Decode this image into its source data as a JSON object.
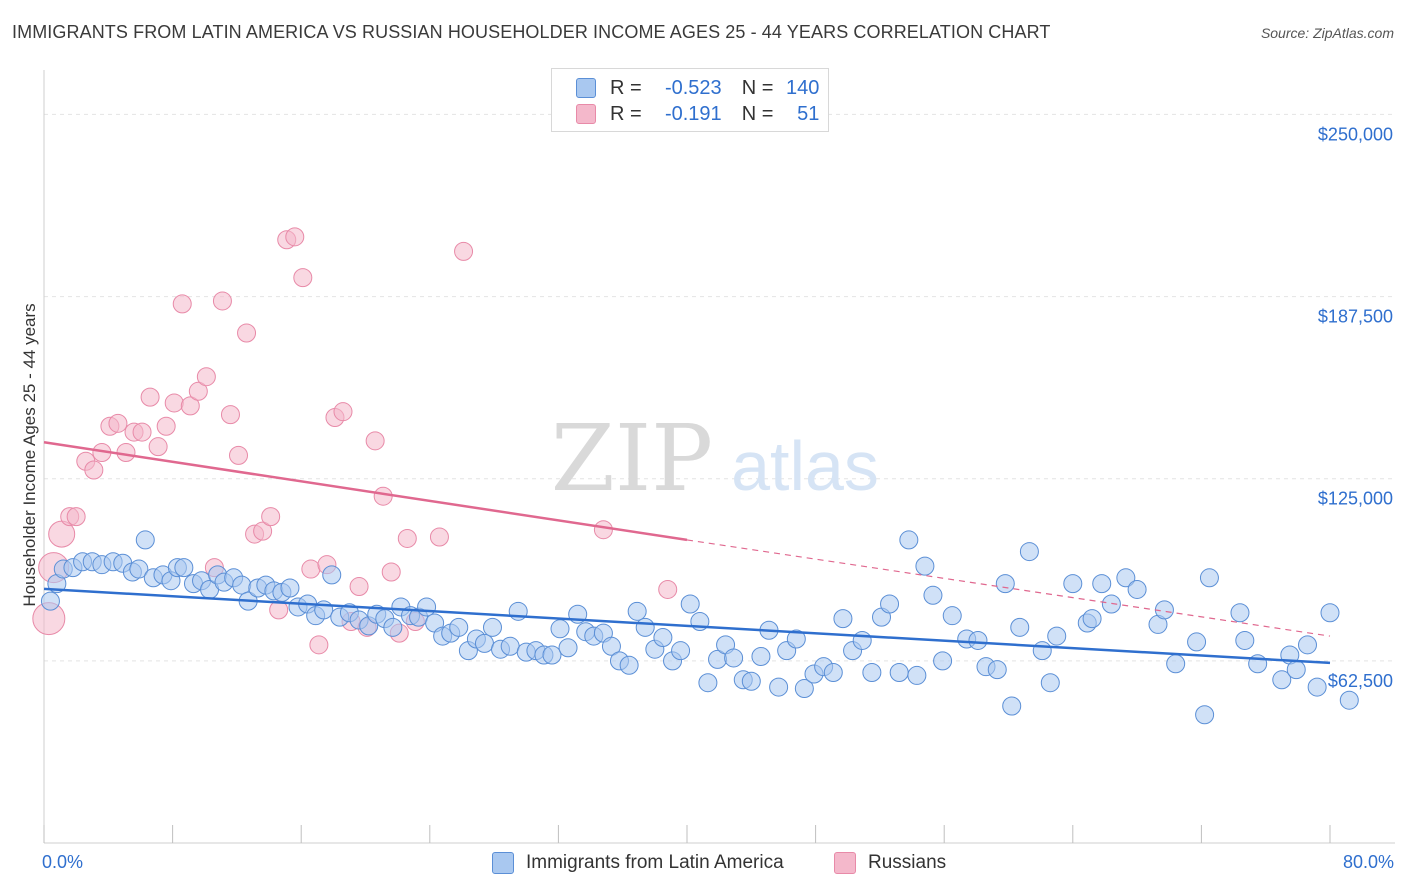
{
  "title": "IMMIGRANTS FROM LATIN AMERICA VS RUSSIAN HOUSEHOLDER INCOME AGES 25 - 44 YEARS CORRELATION CHART",
  "source": "Source: ZipAtlas.com",
  "watermark": {
    "zip": "ZIP",
    "atlas": "atlas"
  },
  "legend": {
    "r_label": "R =",
    "n_label": "N =",
    "rows": [
      {
        "r": "-0.523",
        "n": "140",
        "color": "#a9c8f0"
      },
      {
        "r": "-0.191",
        "n": "51",
        "color": "#f4b8cb"
      }
    ]
  },
  "bottom_legend": [
    "Immigrants from Latin America",
    "Russians"
  ],
  "colors": {
    "blue_fill": "#a9c8f0",
    "blue_stroke": "#5b8fd6",
    "blue_line": "#2f6fce",
    "pink_fill": "#f4b8cb",
    "pink_stroke": "#e88aa8",
    "pink_line": "#e0688f",
    "axis_text": "#2f6fce",
    "grid": "#e4e4e4"
  },
  "chart_data": {
    "type": "scatter",
    "title": "IMMIGRANTS FROM LATIN AMERICA VS RUSSIAN HOUSEHOLDER INCOME AGES 25 - 44 YEARS CORRELATION CHART",
    "xlabel": "",
    "ylabel": "Householder Income Ages 25 - 44 years",
    "xlim": [
      0,
      80
    ],
    "ylim": [
      0,
      262500
    ],
    "x_tick_labels": [
      "0.0%",
      "80.0%"
    ],
    "y_ticks": [
      62500,
      125000,
      187500,
      250000
    ],
    "y_tick_labels": [
      "$62,500",
      "$125,000",
      "$187,500",
      "$250,000"
    ],
    "grid": true,
    "legend_position": "top-center",
    "series": [
      {
        "name": "Immigrants from Latin America",
        "r": -0.523,
        "n": 140,
        "trend": {
          "x": [
            0,
            80
          ],
          "y": [
            87200,
            61800
          ],
          "dashed_from_x": null
        },
        "points": [
          [
            0.4,
            83000
          ],
          [
            0.8,
            89000
          ],
          [
            1.2,
            94000
          ],
          [
            1.8,
            94500
          ],
          [
            2.4,
            96500
          ],
          [
            3.0,
            96500
          ],
          [
            3.6,
            95500
          ],
          [
            4.3,
            96500
          ],
          [
            4.9,
            96000
          ],
          [
            5.5,
            93000
          ],
          [
            5.9,
            94000
          ],
          [
            6.3,
            104000
          ],
          [
            6.8,
            91000
          ],
          [
            7.4,
            92000
          ],
          [
            7.9,
            90000
          ],
          [
            8.3,
            94500
          ],
          [
            8.7,
            94500
          ],
          [
            9.3,
            89000
          ],
          [
            9.8,
            90000
          ],
          [
            10.3,
            87000
          ],
          [
            10.8,
            92000
          ],
          [
            11.2,
            89500
          ],
          [
            11.8,
            91000
          ],
          [
            12.3,
            88500
          ],
          [
            12.7,
            83000
          ],
          [
            13.3,
            87500
          ],
          [
            13.8,
            88500
          ],
          [
            14.3,
            86500
          ],
          [
            14.8,
            86000
          ],
          [
            15.3,
            87500
          ],
          [
            15.8,
            81000
          ],
          [
            16.4,
            82000
          ],
          [
            16.9,
            78000
          ],
          [
            17.4,
            80000
          ],
          [
            17.9,
            92000
          ],
          [
            18.4,
            77500
          ],
          [
            19.0,
            79000
          ],
          [
            19.6,
            76500
          ],
          [
            20.2,
            74500
          ],
          [
            20.7,
            78500
          ],
          [
            21.2,
            77000
          ],
          [
            21.7,
            74000
          ],
          [
            22.2,
            81000
          ],
          [
            22.8,
            78000
          ],
          [
            23.3,
            77500
          ],
          [
            23.8,
            81000
          ],
          [
            24.3,
            75500
          ],
          [
            24.8,
            71000
          ],
          [
            25.3,
            72000
          ],
          [
            25.8,
            74000
          ],
          [
            26.4,
            66000
          ],
          [
            26.9,
            70000
          ],
          [
            27.4,
            68500
          ],
          [
            27.9,
            74000
          ],
          [
            28.4,
            66500
          ],
          [
            29.0,
            67500
          ],
          [
            29.5,
            79500
          ],
          [
            30.0,
            65500
          ],
          [
            30.6,
            66000
          ],
          [
            31.1,
            64500
          ],
          [
            31.6,
            64500
          ],
          [
            32.1,
            73500
          ],
          [
            32.6,
            67000
          ],
          [
            33.2,
            78500
          ],
          [
            33.7,
            72500
          ],
          [
            34.2,
            71000
          ],
          [
            34.8,
            72000
          ],
          [
            35.3,
            67500
          ],
          [
            35.8,
            62500
          ],
          [
            36.4,
            61000
          ],
          [
            36.9,
            79500
          ],
          [
            37.4,
            74000
          ],
          [
            38.0,
            66500
          ],
          [
            38.5,
            70500
          ],
          [
            39.1,
            62500
          ],
          [
            39.6,
            66000
          ],
          [
            40.2,
            82000
          ],
          [
            40.8,
            76000
          ],
          [
            41.3,
            55000
          ],
          [
            41.9,
            63000
          ],
          [
            42.4,
            68000
          ],
          [
            42.9,
            63500
          ],
          [
            43.5,
            56000
          ],
          [
            44.0,
            55500
          ],
          [
            44.6,
            64000
          ],
          [
            45.1,
            73000
          ],
          [
            45.7,
            53500
          ],
          [
            46.2,
            66000
          ],
          [
            46.8,
            70000
          ],
          [
            47.3,
            53000
          ],
          [
            47.9,
            58000
          ],
          [
            48.5,
            60500
          ],
          [
            49.1,
            58500
          ],
          [
            49.7,
            77000
          ],
          [
            50.3,
            66000
          ],
          [
            50.9,
            69500
          ],
          [
            51.5,
            58500
          ],
          [
            52.1,
            77500
          ],
          [
            52.6,
            82000
          ],
          [
            53.2,
            58500
          ],
          [
            53.8,
            104000
          ],
          [
            54.3,
            57500
          ],
          [
            54.8,
            95000
          ],
          [
            55.3,
            85000
          ],
          [
            55.9,
            62500
          ],
          [
            56.5,
            78000
          ],
          [
            57.4,
            70000
          ],
          [
            58.1,
            69500
          ],
          [
            58.6,
            60500
          ],
          [
            59.3,
            59500
          ],
          [
            59.8,
            89000
          ],
          [
            60.2,
            47000
          ],
          [
            60.7,
            74000
          ],
          [
            61.3,
            100000
          ],
          [
            62.1,
            66000
          ],
          [
            62.6,
            55000
          ],
          [
            63.0,
            71000
          ],
          [
            64.0,
            89000
          ],
          [
            64.9,
            75500
          ],
          [
            65.2,
            77000
          ],
          [
            65.8,
            89000
          ],
          [
            66.4,
            82000
          ],
          [
            67.3,
            91000
          ],
          [
            68.0,
            87000
          ],
          [
            69.3,
            75000
          ],
          [
            69.7,
            80000
          ],
          [
            70.4,
            61500
          ],
          [
            71.7,
            69000
          ],
          [
            72.2,
            44000
          ],
          [
            72.5,
            91000
          ],
          [
            74.4,
            79000
          ],
          [
            74.7,
            69500
          ],
          [
            75.5,
            61500
          ],
          [
            77.0,
            56000
          ],
          [
            77.5,
            64500
          ],
          [
            77.9,
            59500
          ],
          [
            78.6,
            68000
          ],
          [
            79.2,
            53500
          ],
          [
            80.0,
            79000
          ],
          [
            81.2,
            49000
          ]
        ]
      },
      {
        "name": "Russians",
        "r": -0.191,
        "n": 51,
        "trend": {
          "x": [
            0,
            40,
            80
          ],
          "y": [
            137500,
            104000,
            71000
          ],
          "dashed_from_x": 40
        },
        "points": [
          [
            0.3,
            77000
          ],
          [
            0.6,
            94500
          ],
          [
            1.1,
            106000
          ],
          [
            1.6,
            112000
          ],
          [
            2.0,
            112000
          ],
          [
            2.6,
            131000
          ],
          [
            3.1,
            128000
          ],
          [
            3.6,
            134000
          ],
          [
            4.1,
            143000
          ],
          [
            4.6,
            144000
          ],
          [
            5.1,
            134000
          ],
          [
            5.6,
            141000
          ],
          [
            6.1,
            141000
          ],
          [
            6.6,
            153000
          ],
          [
            7.1,
            136000
          ],
          [
            7.6,
            143000
          ],
          [
            8.1,
            151000
          ],
          [
            8.6,
            185000
          ],
          [
            9.1,
            150000
          ],
          [
            9.6,
            155000
          ],
          [
            10.1,
            160000
          ],
          [
            10.6,
            94500
          ],
          [
            11.1,
            186000
          ],
          [
            11.6,
            147000
          ],
          [
            12.1,
            133000
          ],
          [
            12.6,
            175000
          ],
          [
            13.1,
            106000
          ],
          [
            13.6,
            107000
          ],
          [
            14.1,
            112000
          ],
          [
            14.6,
            80000
          ],
          [
            15.1,
            207000
          ],
          [
            15.6,
            208000
          ],
          [
            16.1,
            194000
          ],
          [
            16.6,
            94000
          ],
          [
            17.1,
            68000
          ],
          [
            17.6,
            95500
          ],
          [
            18.1,
            146000
          ],
          [
            18.6,
            148000
          ],
          [
            19.1,
            76000
          ],
          [
            19.6,
            88000
          ],
          [
            20.1,
            74000
          ],
          [
            20.6,
            138000
          ],
          [
            21.1,
            119000
          ],
          [
            21.6,
            93000
          ],
          [
            22.1,
            72000
          ],
          [
            22.6,
            104500
          ],
          [
            23.1,
            76000
          ],
          [
            24.6,
            105000
          ],
          [
            26.1,
            203000
          ],
          [
            34.8,
            107500
          ],
          [
            38.8,
            87000
          ]
        ]
      }
    ]
  }
}
